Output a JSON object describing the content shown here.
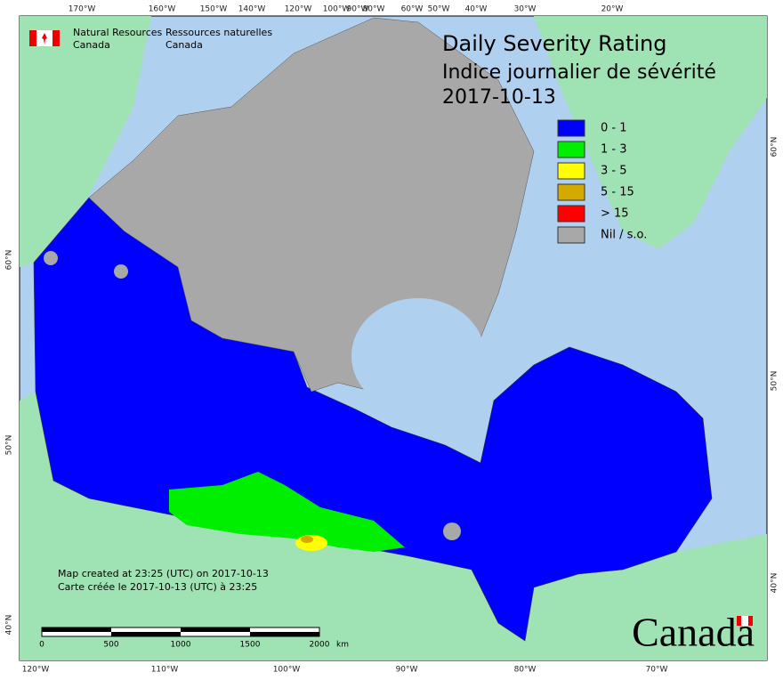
{
  "agency": {
    "en": [
      "Natural Resources",
      "Canada"
    ],
    "fr": [
      "Ressources naturelles",
      "Canada"
    ]
  },
  "title": [
    "Daily Severity Rating",
    "Indice journalier de sévérité",
    "2017-10-13"
  ],
  "legend": [
    {
      "label": "0 - 1",
      "color": "#0000ff"
    },
    {
      "label": "1 - 3",
      "color": "#00ee00"
    },
    {
      "label": "3 - 5",
      "color": "#ffff00"
    },
    {
      "label": "5 - 15",
      "color": "#d4aa00"
    },
    {
      "label": "> 15",
      "color": "#ff0000"
    },
    {
      "label": "Nil / s.o.",
      "color": "#a8a8a8"
    }
  ],
  "graticule": {
    "top": [
      "170°W",
      "160°W",
      "150°W",
      "140°W",
      "120°W",
      "100°W",
      "90°W",
      "80°W",
      "60°W",
      "50°W",
      "40°W",
      "30°W",
      "20°W"
    ],
    "bottom": [
      "120°W",
      "110°W",
      "100°W",
      "90°W",
      "80°W",
      "70°W"
    ],
    "left": [
      "60°N",
      "50°N",
      "40°N"
    ],
    "right": [
      "60°N",
      "50°N",
      "40°N"
    ]
  },
  "credits": [
    "Map created at 23:25 (UTC) on 2017-10-13",
    "Carte créée le 2017-10-13 (UTC) à 23:25"
  ],
  "scale_bar": {
    "labels": [
      "0",
      "500",
      "1000",
      "1500",
      "2000"
    ],
    "unit": "km"
  },
  "wordmark": "Canada"
}
